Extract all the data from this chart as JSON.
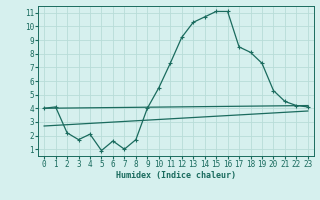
{
  "xlabel": "Humidex (Indice chaleur)",
  "bg_color": "#d6f0ee",
  "grid_color": "#b8dcd8",
  "line_color": "#1a6b5e",
  "xlim": [
    -0.5,
    23.5
  ],
  "ylim": [
    0.5,
    11.5
  ],
  "xticks": [
    0,
    1,
    2,
    3,
    4,
    5,
    6,
    7,
    8,
    9,
    10,
    11,
    12,
    13,
    14,
    15,
    16,
    17,
    18,
    19,
    20,
    21,
    22,
    23
  ],
  "yticks": [
    1,
    2,
    3,
    4,
    5,
    6,
    7,
    8,
    9,
    10,
    11
  ],
  "line1_x": [
    0,
    1,
    2,
    3,
    4,
    5,
    6,
    7,
    8,
    9,
    10,
    11,
    12,
    13,
    14,
    15,
    16,
    17,
    18,
    19,
    20,
    21,
    22,
    23
  ],
  "line1_y": [
    4.0,
    4.1,
    2.2,
    1.7,
    2.1,
    0.9,
    1.6,
    1.0,
    1.7,
    4.0,
    5.5,
    7.3,
    9.2,
    10.3,
    10.7,
    11.1,
    11.1,
    8.5,
    8.1,
    7.3,
    5.3,
    4.5,
    4.2,
    4.1
  ],
  "line2_x": [
    0,
    23
  ],
  "line2_y": [
    4.0,
    4.2
  ],
  "line3_x": [
    0,
    23
  ],
  "line3_y": [
    2.7,
    3.8
  ]
}
